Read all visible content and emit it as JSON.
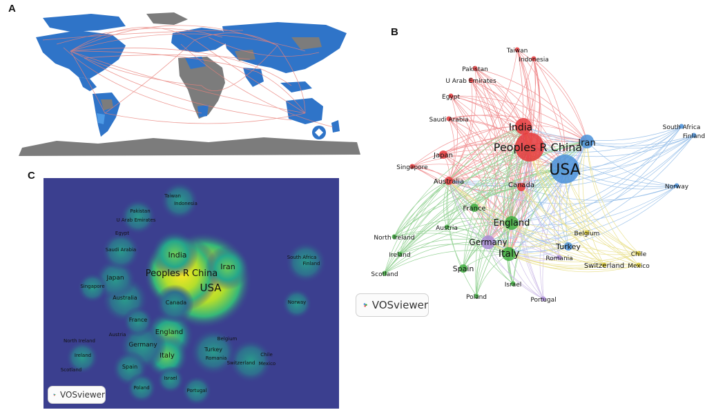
{
  "panels": {
    "a": "A",
    "b": "B",
    "c": "C"
  },
  "vosviewer_label": "VOSviewer",
  "colors": {
    "ocean": "#ffffff",
    "land_active": "#2f74c8",
    "land_inactive": "#7c7c7c",
    "links": "#e9817a",
    "cluster_red": "#e5383b",
    "cluster_blue": "#4a90d9",
    "cluster_green": "#3fae3f",
    "cluster_yellow": "#d8c832",
    "cluster_purple": "#a98bd6",
    "density_bg": "#3b3f8f"
  },
  "network": {
    "nodes": [
      {
        "label": "USA",
        "cluster": "blue",
        "size": "xl",
        "text_size": 22
      },
      {
        "label": "Peoples R China",
        "cluster": "red",
        "size": "xl",
        "text_size": 16
      },
      {
        "label": "India",
        "cluster": "red",
        "size": "l",
        "text_size": 14
      },
      {
        "label": "Iran",
        "cluster": "blue",
        "size": "m",
        "text_size": 13
      },
      {
        "label": "Canada",
        "cluster": "red",
        "size": "s",
        "text_size": 10
      },
      {
        "label": "Australia",
        "cluster": "red",
        "size": "s",
        "text_size": 10
      },
      {
        "label": "Japan",
        "cluster": "red",
        "size": "s",
        "text_size": 10
      },
      {
        "label": "Singapore",
        "cluster": "red",
        "size": "xs",
        "text_size": 9
      },
      {
        "label": "Saudi Arabia",
        "cluster": "red",
        "size": "xs",
        "text_size": 9
      },
      {
        "label": "Egypt",
        "cluster": "red",
        "size": "xs",
        "text_size": 9
      },
      {
        "label": "U Arab Emirates",
        "cluster": "red",
        "size": "xs",
        "text_size": 9
      },
      {
        "label": "Pakistan",
        "cluster": "red",
        "size": "xs",
        "text_size": 9
      },
      {
        "label": "Taiwan",
        "cluster": "red",
        "size": "xs",
        "text_size": 9
      },
      {
        "label": "Indonesia",
        "cluster": "red",
        "size": "xs",
        "text_size": 9
      },
      {
        "label": "South Africa",
        "cluster": "blue",
        "size": "xs",
        "text_size": 9
      },
      {
        "label": "Finland",
        "cluster": "blue",
        "size": "xs",
        "text_size": 9
      },
      {
        "label": "Norway",
        "cluster": "blue",
        "size": "xs",
        "text_size": 9
      },
      {
        "label": "Turkey",
        "cluster": "blue",
        "size": "s",
        "text_size": 11
      },
      {
        "label": "England",
        "cluster": "green",
        "size": "m",
        "text_size": 13
      },
      {
        "label": "France",
        "cluster": "green",
        "size": "s",
        "text_size": 10
      },
      {
        "label": "Germany",
        "cluster": "purple",
        "size": "m",
        "text_size": 12
      },
      {
        "label": "Italy",
        "cluster": "green",
        "size": "m",
        "text_size": 14
      },
      {
        "label": "Spain",
        "cluster": "green",
        "size": "s",
        "text_size": 11
      },
      {
        "label": "Austria",
        "cluster": "green",
        "size": "xs",
        "text_size": 9
      },
      {
        "label": "North Ireland",
        "cluster": "green",
        "size": "xs",
        "text_size": 9
      },
      {
        "label": "Ireland",
        "cluster": "green",
        "size": "xs",
        "text_size": 9
      },
      {
        "label": "Scotland",
        "cluster": "green",
        "size": "xs",
        "text_size": 9
      },
      {
        "label": "Poland",
        "cluster": "green",
        "size": "xs",
        "text_size": 9
      },
      {
        "label": "Israel",
        "cluster": "green",
        "size": "xs",
        "text_size": 9
      },
      {
        "label": "Portugal",
        "cluster": "purple",
        "size": "xs",
        "text_size": 9
      },
      {
        "label": "Romania",
        "cluster": "purple",
        "size": "xs",
        "text_size": 9
      },
      {
        "label": "Belgium",
        "cluster": "yellow",
        "size": "xs",
        "text_size": 9
      },
      {
        "label": "Switzerland",
        "cluster": "yellow",
        "size": "xs",
        "text_size": 10
      },
      {
        "label": "Chile",
        "cluster": "yellow",
        "size": "xs",
        "text_size": 9
      },
      {
        "label": "Mexico",
        "cluster": "yellow",
        "size": "xs",
        "text_size": 9
      }
    ]
  },
  "density": {
    "labels": [
      {
        "label": "USA",
        "text_size": 15
      },
      {
        "label": "Peoples R China",
        "text_size": 13
      },
      {
        "label": "India",
        "text_size": 11
      },
      {
        "label": "Iran",
        "text_size": 11
      },
      {
        "label": "Taiwan",
        "text_size": 7
      },
      {
        "label": "Indonesia",
        "text_size": 7
      },
      {
        "label": "Pakistan",
        "text_size": 7
      },
      {
        "label": "U Arab Emirates",
        "text_size": 7
      },
      {
        "label": "Egypt",
        "text_size": 7
      },
      {
        "label": "Saudi Arabia",
        "text_size": 7
      },
      {
        "label": "Japan",
        "text_size": 9
      },
      {
        "label": "Singapore",
        "text_size": 7
      },
      {
        "label": "Australia",
        "text_size": 8
      },
      {
        "label": "Canada",
        "text_size": 8
      },
      {
        "label": "South Africa",
        "text_size": 7
      },
      {
        "label": "Finland",
        "text_size": 7
      },
      {
        "label": "Norway",
        "text_size": 7
      },
      {
        "label": "France",
        "text_size": 8
      },
      {
        "label": "England",
        "text_size": 10
      },
      {
        "label": "Austria",
        "text_size": 7
      },
      {
        "label": "Germany",
        "text_size": 9
      },
      {
        "label": "North Ireland",
        "text_size": 7
      },
      {
        "label": "Italy",
        "text_size": 10
      },
      {
        "label": "Ireland",
        "text_size": 7
      },
      {
        "label": "Spain",
        "text_size": 8
      },
      {
        "label": "Scotland",
        "text_size": 7
      },
      {
        "label": "Belgium",
        "text_size": 7
      },
      {
        "label": "Turkey",
        "text_size": 8
      },
      {
        "label": "Romania",
        "text_size": 7
      },
      {
        "label": "Switzerland",
        "text_size": 7
      },
      {
        "label": "Chile",
        "text_size": 7
      },
      {
        "label": "Mexico",
        "text_size": 7
      },
      {
        "label": "Israel",
        "text_size": 7
      },
      {
        "label": "Poland",
        "text_size": 7
      },
      {
        "label": "Portugal",
        "text_size": 7
      }
    ]
  }
}
